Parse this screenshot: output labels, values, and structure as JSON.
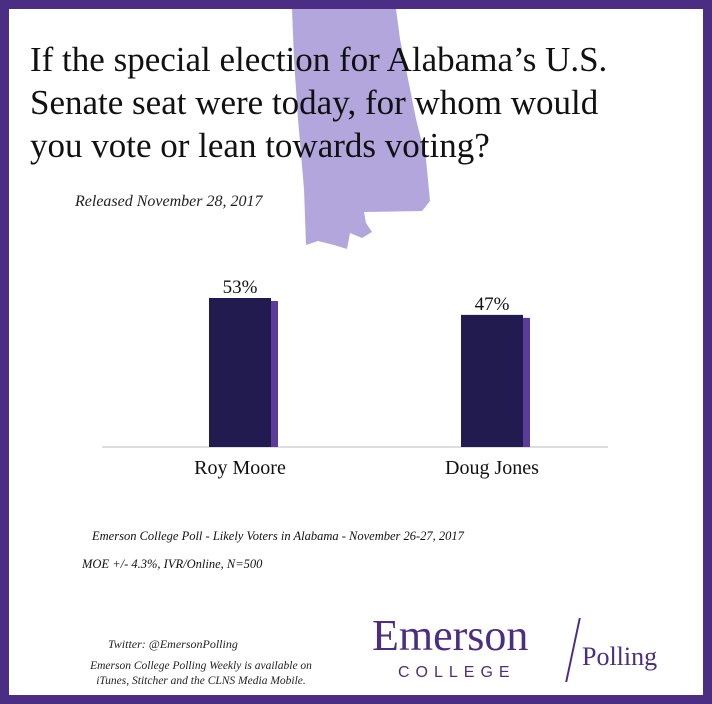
{
  "title_lines": [
    "If the special election for Alabama’s U.S.",
    "Senate seat were today, for whom would",
    "you vote or lean towards voting?"
  ],
  "released": "Released November 28, 2017",
  "chart_data": {
    "type": "bar",
    "title": "",
    "categories": [
      "Roy Moore",
      "Doug Jones"
    ],
    "values": [
      53,
      47
    ],
    "value_labels": [
      "53%",
      "47%"
    ],
    "ylim": [
      0,
      100
    ],
    "xlabel": "",
    "ylabel": "",
    "grid": false,
    "bar_color": "#221b4f",
    "bar_shadow_color": "#5c3c99"
  },
  "footnotes": {
    "source": "Emerson College Poll - Likely Voters in Alabama - November 26-27, 2017",
    "moe": "MOE +/- 4.3%, IVR/Online, N=500"
  },
  "footer": {
    "twitter": "Twitter: @EmersonPolling",
    "weekly_line1": "Emerson College Polling Weekly is available on",
    "weekly_line2": "iTunes, Stitcher and the CLNS Media Mobile."
  },
  "logo": {
    "emerson": "Emerson",
    "college": "COLLEGE",
    "polling": "Polling"
  },
  "colors": {
    "border": "#4b2e83",
    "alabama_fill": "#b3a6dd",
    "text": "#111111"
  }
}
